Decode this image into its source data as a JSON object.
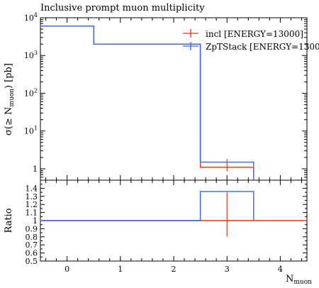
{
  "chart_data": {
    "type": "line",
    "title": "Inclusive prompt muon multiplicity",
    "xlabel": "N",
    "xlabel_sub": "muon",
    "ylabel": "σ(≥ N",
    "ylabel_sub": "muon",
    "ylabel_tail": ") [pb]",
    "ratio_ylabel": "Ratio",
    "xlim": [
      -0.5,
      4.5
    ],
    "ylim": [
      0.5,
      10000
    ],
    "yscale": "log",
    "ratio_ylim": [
      0.5,
      1.5
    ],
    "x_ticks": [
      "0",
      "1",
      "2",
      "3",
      "4"
    ],
    "y_ticks": [
      {
        "value": 1,
        "base": "1",
        "exp": ""
      },
      {
        "value": 10,
        "base": "10",
        "exp": "1"
      },
      {
        "value": 100,
        "base": "10",
        "exp": "2"
      },
      {
        "value": 1000,
        "base": "10",
        "exp": "3"
      },
      {
        "value": 10000,
        "base": "10",
        "exp": "4"
      }
    ],
    "ratio_ticks": [
      "0.5",
      "0.6",
      "0.7",
      "0.8",
      "0.9",
      "1",
      "1.1",
      "1.2",
      "1.3",
      "1.4"
    ],
    "legend_position": "top-right",
    "series": [
      {
        "name": "incl [ENERGY=13000]",
        "color": "#ee3311",
        "bins": [
          {
            "x0": -0.5,
            "x1": 0.5,
            "y": 6000
          },
          {
            "x0": 0.5,
            "x1": 2.5,
            "y": 2000
          },
          {
            "x0": 2.5,
            "x1": 3.5,
            "y": 1.1,
            "err_lo": 0.25,
            "err_hi": 0.7
          }
        ],
        "ratio": [
          {
            "x0": -0.5,
            "x1": 2.5,
            "y": 1.0
          },
          {
            "x0": 2.5,
            "x1": 3.5,
            "y": 1.0,
            "err_lo": 0.2,
            "err_hi": 0.35
          },
          {
            "x0": 3.5,
            "x1": 4.5,
            "y": 1.0
          }
        ]
      },
      {
        "name": "ZpTStack [ENERGY=1300",
        "color": "#3366ff",
        "bins": [
          {
            "x0": -0.5,
            "x1": 0.5,
            "y": 6000
          },
          {
            "x0": 0.5,
            "x1": 2.5,
            "y": 2000
          },
          {
            "x0": 2.5,
            "x1": 3.5,
            "y": 1.5
          }
        ],
        "ratio": [
          {
            "x0": -0.5,
            "x1": 2.5,
            "y": 1.0
          },
          {
            "x0": 2.5,
            "x1": 3.5,
            "y": 1.36
          }
        ]
      }
    ]
  }
}
